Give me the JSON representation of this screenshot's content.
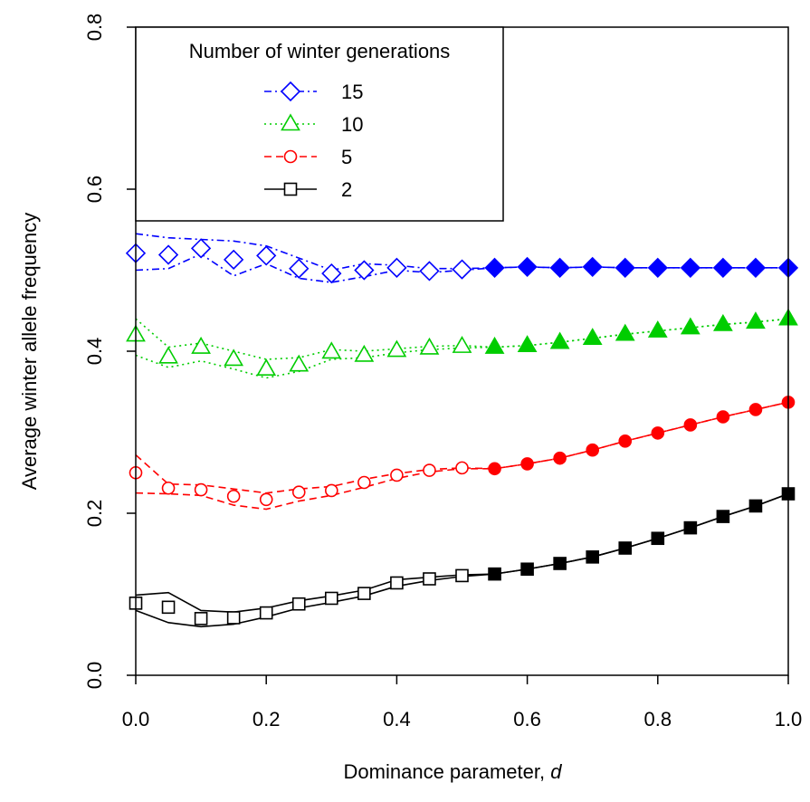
{
  "chart_data": {
    "type": "line",
    "title": "",
    "xlabel": "Dominance parameter, ",
    "xlabel_italic": "d",
    "ylabel": "Average winter allele frequency",
    "xlim": [
      0,
      1
    ],
    "ylim": [
      0,
      0.8
    ],
    "x_ticks": [
      "0.0",
      "0.2",
      "0.4",
      "0.6",
      "0.8",
      "1.0"
    ],
    "y_ticks": [
      "0.0",
      "0.2",
      "0.4",
      "0.6",
      "0.8"
    ],
    "grid": false,
    "legend": {
      "placement": "top-left",
      "title": "Number of winter generations"
    },
    "x": [
      0,
      0.05,
      0.1,
      0.15,
      0.2,
      0.25,
      0.3,
      0.35,
      0.4,
      0.45,
      0.5,
      0.55,
      0.6,
      0.65,
      0.7,
      0.75,
      0.8,
      0.85,
      0.9,
      0.95,
      1.0
    ],
    "filled_from_x": 0.55,
    "series": [
      {
        "name": "15",
        "color": "#0000ff",
        "marker": "diamond",
        "line_style": "dash-dot",
        "values": [
          0.521,
          0.519,
          0.527,
          0.513,
          0.518,
          0.502,
          0.496,
          0.5,
          0.503,
          0.499,
          0.501,
          0.503,
          0.504,
          0.503,
          0.504,
          0.503,
          0.503,
          0.503,
          0.503,
          0.503,
          0.503
        ],
        "upper": [
          0.545,
          0.54,
          0.538,
          0.536,
          0.53,
          0.515,
          0.5,
          0.508,
          0.506,
          0.502,
          0.502,
          0.503,
          0.504,
          0.503,
          0.504,
          0.503,
          0.503,
          0.503,
          0.503,
          0.503,
          0.503
        ],
        "lower": [
          0.5,
          0.502,
          0.52,
          0.493,
          0.508,
          0.49,
          0.485,
          0.492,
          0.5,
          0.497,
          0.5,
          0.503,
          0.504,
          0.503,
          0.504,
          0.503,
          0.503,
          0.503,
          0.503,
          0.503,
          0.503
        ]
      },
      {
        "name": "10",
        "color": "#00cd00",
        "marker": "triangle",
        "line_style": "dotted",
        "values": [
          0.42,
          0.393,
          0.405,
          0.39,
          0.378,
          0.383,
          0.399,
          0.395,
          0.401,
          0.404,
          0.406,
          0.405,
          0.407,
          0.411,
          0.416,
          0.421,
          0.425,
          0.429,
          0.433,
          0.436,
          0.44
        ],
        "upper": [
          0.44,
          0.405,
          0.41,
          0.4,
          0.39,
          0.392,
          0.402,
          0.4,
          0.403,
          0.406,
          0.407,
          0.405,
          0.407,
          0.411,
          0.416,
          0.421,
          0.425,
          0.429,
          0.433,
          0.436,
          0.44
        ],
        "lower": [
          0.395,
          0.38,
          0.388,
          0.378,
          0.367,
          0.375,
          0.39,
          0.392,
          0.398,
          0.402,
          0.404,
          0.405,
          0.407,
          0.411,
          0.416,
          0.421,
          0.425,
          0.429,
          0.433,
          0.436,
          0.44
        ]
      },
      {
        "name": "5",
        "color": "#ff0000",
        "marker": "circle",
        "line_style": "dashed",
        "values": [
          0.25,
          0.231,
          0.229,
          0.221,
          0.217,
          0.226,
          0.228,
          0.238,
          0.247,
          0.253,
          0.256,
          0.255,
          0.261,
          0.268,
          0.278,
          0.289,
          0.299,
          0.309,
          0.319,
          0.328,
          0.337
        ],
        "upper": [
          0.272,
          0.236,
          0.235,
          0.23,
          0.225,
          0.23,
          0.233,
          0.242,
          0.249,
          0.254,
          0.256,
          0.255,
          0.261,
          0.268,
          0.278,
          0.289,
          0.299,
          0.309,
          0.319,
          0.328,
          0.337
        ],
        "lower": [
          0.225,
          0.224,
          0.222,
          0.21,
          0.205,
          0.215,
          0.222,
          0.232,
          0.243,
          0.251,
          0.255,
          0.255,
          0.261,
          0.268,
          0.278,
          0.289,
          0.299,
          0.309,
          0.319,
          0.328,
          0.337
        ]
      },
      {
        "name": "2",
        "color": "#000000",
        "marker": "square",
        "line_style": "solid",
        "values": [
          0.089,
          0.084,
          0.07,
          0.071,
          0.077,
          0.088,
          0.095,
          0.101,
          0.114,
          0.119,
          0.123,
          0.125,
          0.131,
          0.138,
          0.146,
          0.157,
          0.169,
          0.182,
          0.196,
          0.209,
          0.224
        ],
        "upper": [
          0.099,
          0.102,
          0.08,
          0.078,
          0.083,
          0.092,
          0.098,
          0.105,
          0.118,
          0.121,
          0.124,
          0.125,
          0.131,
          0.138,
          0.146,
          0.157,
          0.169,
          0.182,
          0.196,
          0.209,
          0.224
        ],
        "lower": [
          0.08,
          0.065,
          0.06,
          0.063,
          0.072,
          0.083,
          0.09,
          0.098,
          0.11,
          0.117,
          0.122,
          0.125,
          0.131,
          0.138,
          0.146,
          0.157,
          0.169,
          0.182,
          0.196,
          0.209,
          0.224
        ]
      }
    ]
  }
}
